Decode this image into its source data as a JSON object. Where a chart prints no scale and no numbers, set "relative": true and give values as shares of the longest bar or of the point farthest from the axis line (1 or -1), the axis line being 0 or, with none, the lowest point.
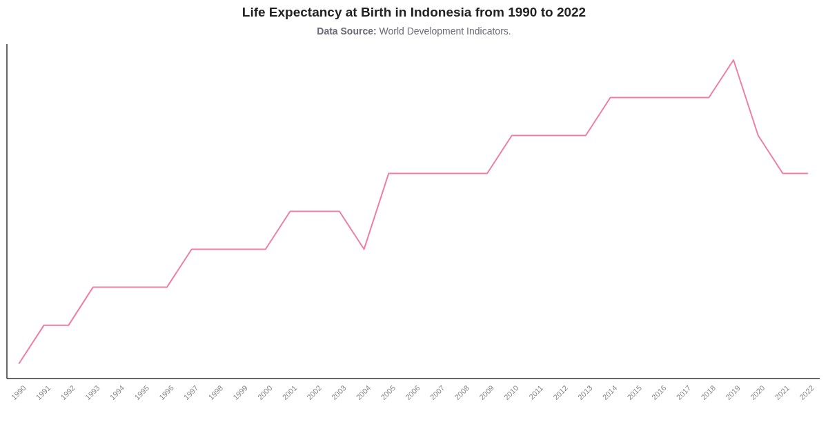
{
  "chart_data": {
    "type": "line",
    "title": "Life Expectancy at Birth in Indonesia from 1990 to 2022",
    "annotations": [
      "Data Source: World Development Indicators."
    ],
    "categories": [
      "1990",
      "1991",
      "1992",
      "1993",
      "1994",
      "1995",
      "1996",
      "1997",
      "1998",
      "1999",
      "2000",
      "2001",
      "2002",
      "2003",
      "2004",
      "2005",
      "2006",
      "2007",
      "2008",
      "2009",
      "2010",
      "2011",
      "2012",
      "2013",
      "2014",
      "2015",
      "2016",
      "2017",
      "2018",
      "2019",
      "2020",
      "2021",
      "2022"
    ],
    "values": [
      0.048,
      0.167,
      0.167,
      0.287,
      0.287,
      0.287,
      0.287,
      0.406,
      0.406,
      0.406,
      0.406,
      0.525,
      0.525,
      0.525,
      0.406,
      0.644,
      0.644,
      0.644,
      0.644,
      0.644,
      0.763,
      0.763,
      0.763,
      0.763,
      0.882,
      0.882,
      0.882,
      0.882,
      0.882,
      1,
      0.763,
      0.644,
      0.644
    ],
    "color": "#ee7ea6",
    "relative": true
  }
}
